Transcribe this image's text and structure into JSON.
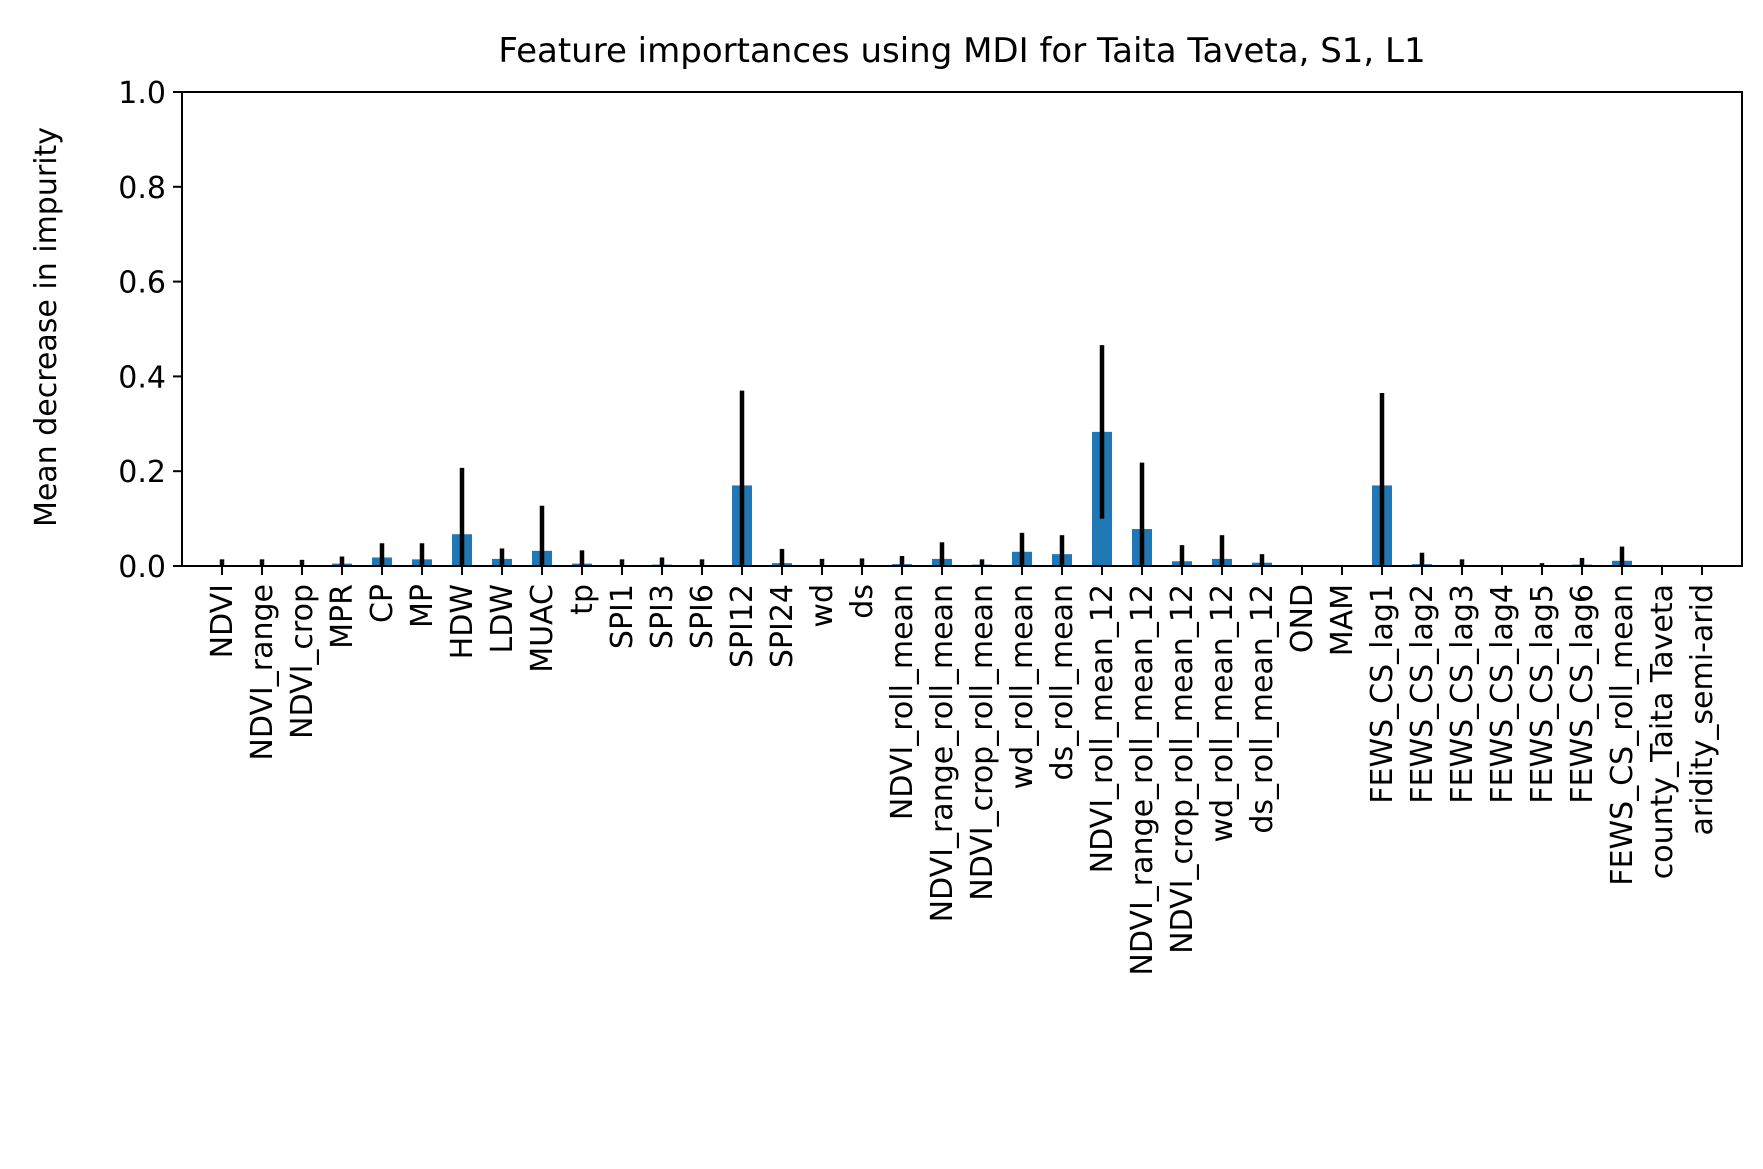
{
  "chart_data": {
    "type": "bar",
    "title": "Feature importances using MDI for Taita Taveta, S1, L1",
    "xlabel": "",
    "ylabel": "Mean decrease in impurity",
    "ylim": [
      0,
      1
    ],
    "yticks": [
      0.0,
      0.2,
      0.4,
      0.6,
      0.8,
      1.0
    ],
    "ytick_labels": [
      "0.0",
      "0.2",
      "0.4",
      "0.6",
      "0.8",
      "1.0"
    ],
    "grid": false,
    "legend": "none",
    "bar_color": "#1f77b4",
    "errorbar_color": "#000000",
    "categories": [
      "NDVI",
      "NDVI_range",
      "NDVI_crop",
      "MPR",
      "CP",
      "MP",
      "HDW",
      "LDW",
      "MUAC",
      "tp",
      "SPI1",
      "SPI3",
      "SPI6",
      "SPI12",
      "SPI24",
      "wd",
      "ds",
      "NDVI_roll_mean",
      "NDVI_range_roll_mean",
      "NDVI_crop_roll_mean",
      "wd_roll_mean",
      "ds_roll_mean",
      "NDVI_roll_mean_12",
      "NDVI_range_roll_mean_12",
      "NDVI_crop_roll_mean_12",
      "wd_roll_mean_12",
      "ds_roll_mean_12",
      "OND",
      "MAM",
      "FEWS_CS_lag1",
      "FEWS_CS_lag2",
      "FEWS_CS_lag3",
      "FEWS_CS_lag4",
      "FEWS_CS_lag5",
      "FEWS_CS_lag6",
      "FEWS_CS_roll_mean",
      "county_Taita Taveta",
      "aridity_semi-arid"
    ],
    "values": [
      0.002,
      0.002,
      0.002,
      0.005,
      0.018,
      0.014,
      0.067,
      0.015,
      0.032,
      0.005,
      0.002,
      0.003,
      0.002,
      0.17,
      0.006,
      0.002,
      0.002,
      0.004,
      0.015,
      0.003,
      0.03,
      0.025,
      0.283,
      0.078,
      0.01,
      0.015,
      0.007,
      0.001,
      0.001,
      0.17,
      0.004,
      0.002,
      0.001,
      0.002,
      0.003,
      0.011,
      0.0,
      0.0
    ],
    "errors": [
      0.012,
      0.012,
      0.011,
      0.015,
      0.03,
      0.034,
      0.14,
      0.022,
      0.095,
      0.028,
      0.012,
      0.015,
      0.012,
      0.2,
      0.03,
      0.013,
      0.014,
      0.017,
      0.035,
      0.011,
      0.04,
      0.04,
      0.183,
      0.14,
      0.034,
      0.05,
      0.018,
      0.001,
      0.001,
      0.195,
      0.024,
      0.012,
      0.001,
      0.004,
      0.014,
      0.03,
      0.0,
      0.0
    ]
  }
}
